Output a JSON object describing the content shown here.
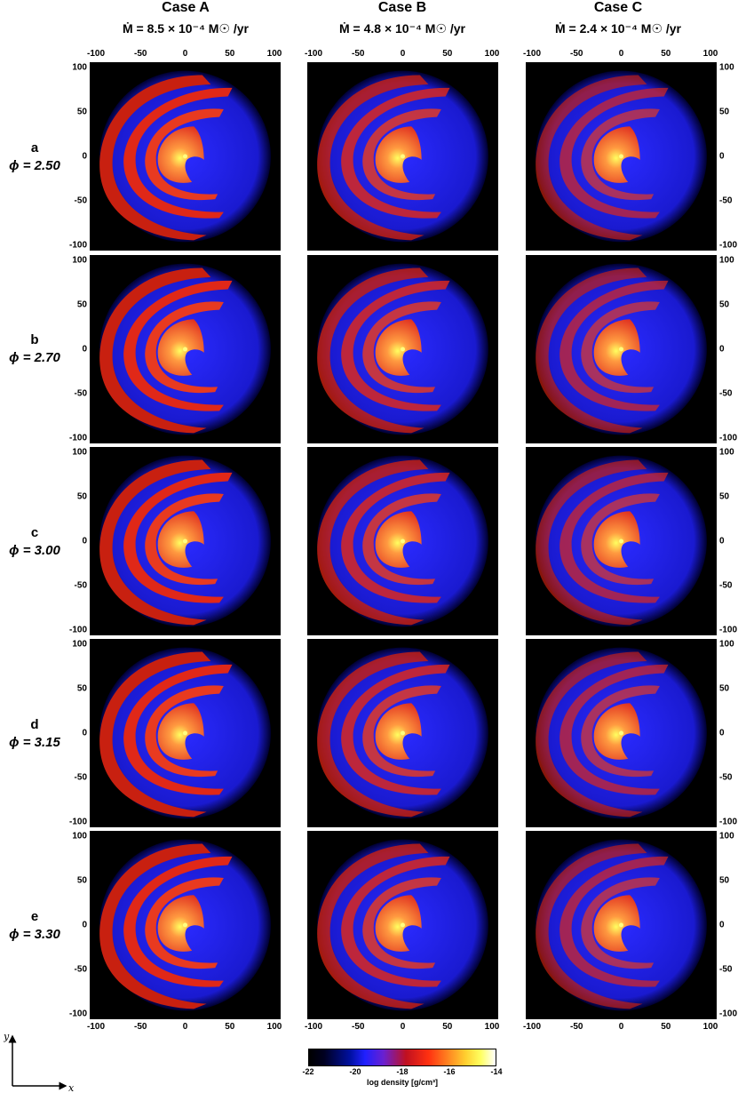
{
  "columns": [
    {
      "title": "Case A",
      "mdot": "Ṁ = 8.5 × 10⁻⁴ M☉ /yr"
    },
    {
      "title": "Case B",
      "mdot": "Ṁ = 4.8 × 10⁻⁴ M☉ /yr"
    },
    {
      "title": "Case C",
      "mdot": "Ṁ = 2.4 × 10⁻⁴ M☉ /yr"
    }
  ],
  "rows": [
    {
      "letter": "a",
      "phi": "ϕ = 2.50"
    },
    {
      "letter": "b",
      "phi": "ϕ = 2.70"
    },
    {
      "letter": "c",
      "phi": "ϕ = 3.00"
    },
    {
      "letter": "d",
      "phi": "ϕ = 3.15"
    },
    {
      "letter": "e",
      "phi": "ϕ = 3.30"
    }
  ],
  "axis_ticks": [
    "-100",
    "-50",
    "0",
    "50",
    "100"
  ],
  "colorbar": {
    "ticks": [
      "-22",
      "-20",
      "-18",
      "-16",
      "-14"
    ],
    "label": "log density  [g/cm³]"
  },
  "axes_indicator": {
    "x": "x",
    "y": "y"
  },
  "colors": {
    "background": "#000000",
    "outer_wind": "#2a2aff",
    "spiral": "#e02818",
    "core": "#ff9a40",
    "center": "#ffff60"
  }
}
